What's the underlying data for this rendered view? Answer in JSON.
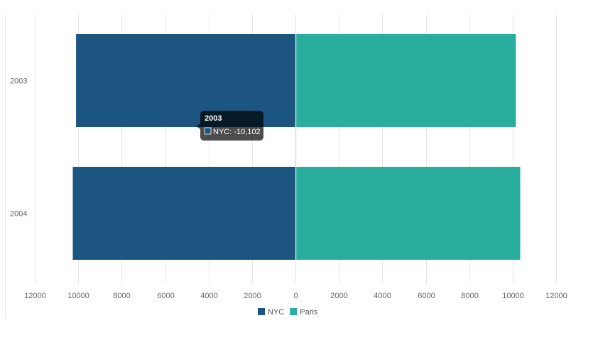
{
  "chart_data": {
    "type": "bar",
    "orientation": "horizontal",
    "stacked": true,
    "categories": [
      "2003",
      "2004"
    ],
    "series": [
      {
        "name": "NYC",
        "values": [
          -10102,
          -10250
        ],
        "color": "#1c5580"
      },
      {
        "name": "Paris",
        "values": [
          10150,
          10350
        ],
        "color": "#29ae9e"
      }
    ],
    "x_axis": {
      "range": [
        -12000,
        12000
      ],
      "ticks": [
        -12000,
        -10000,
        -8000,
        -6000,
        -4000,
        -2000,
        0,
        2000,
        4000,
        6000,
        8000,
        10000,
        12000
      ],
      "tick_labels": [
        "12000",
        "10000",
        "8000",
        "6000",
        "4000",
        "2000",
        "0",
        "2000",
        "4000",
        "6000",
        "8000",
        "10000",
        "12000"
      ]
    },
    "grid": true,
    "legend": {
      "position": "bottom",
      "entries": [
        "NYC",
        "Paris"
      ]
    },
    "tooltip": {
      "title": "2003",
      "body": "NYC: -10,102",
      "category_index": 0,
      "series_index": 0
    }
  }
}
